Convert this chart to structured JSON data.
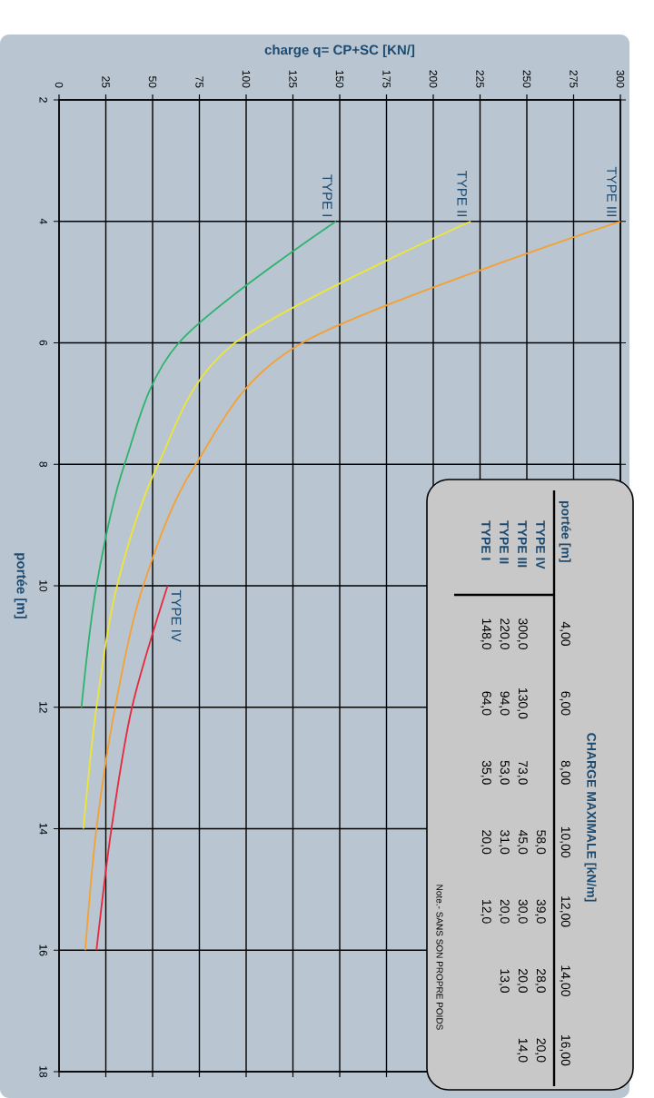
{
  "chart_data": {
    "type": "line",
    "xlabel": "charge q= CP+SC [KN/]",
    "ylabel": "portée [m]",
    "series": [
      {
        "name": "TYPE I",
        "color": "#2db36b",
        "x": [
          148,
          64,
          35,
          20,
          12
        ],
        "values": [
          4,
          6,
          8,
          10,
          12
        ]
      },
      {
        "name": "TYPE II",
        "color": "#eee535",
        "x": [
          220,
          94,
          53,
          31,
          20,
          13
        ],
        "values": [
          4,
          6,
          8,
          10,
          12,
          14
        ]
      },
      {
        "name": "TYPE III",
        "color": "#f5a030",
        "x": [
          300,
          130,
          73,
          45,
          30,
          20,
          14
        ],
        "values": [
          4,
          6,
          8,
          10,
          12,
          14,
          16
        ]
      },
      {
        "name": "TYPE IV",
        "color": "#e8283c",
        "x": [
          58,
          39,
          28,
          20
        ],
        "values": [
          10,
          12,
          14,
          16
        ]
      }
    ],
    "xlim": [
      0,
      300
    ],
    "ylim": [
      18,
      2
    ],
    "xticks": [
      0,
      25,
      50,
      75,
      100,
      125,
      150,
      175,
      200,
      225,
      250,
      275,
      300
    ],
    "yticks": [
      2,
      4,
      6,
      8,
      10,
      12,
      14,
      16,
      18
    ],
    "grid": true,
    "annotations": [
      "CHARGE MAXIMALE [kN/m]",
      "portée [m]",
      "Note.- SANS SON PROPRE POIDS",
      "4,00",
      "6,00",
      "8,00",
      "10,00",
      "12,00",
      "14,00",
      "16,00",
      "148,0",
      "64,0",
      "35,0",
      "20,0",
      "12,0",
      "220,0",
      "94,0",
      "53,0",
      "31,0",
      "20,0",
      "13,0",
      "300,0",
      "130,0",
      "73,0",
      "45,0",
      "30,0",
      "20,0",
      "14,0",
      "58,0",
      "39,0",
      "28,0",
      "20,0"
    ]
  }
}
